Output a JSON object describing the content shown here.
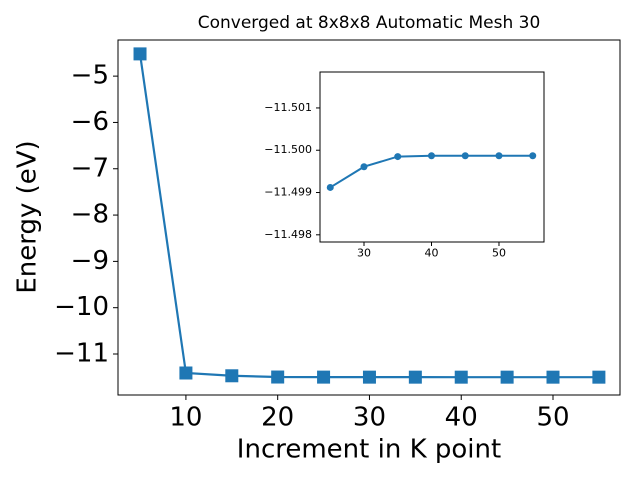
{
  "chart_data": [
    {
      "type": "line",
      "title": "Converged at 8x8x8 Automatic Mesh 30",
      "xlabel": "Increment in K point",
      "ylabel": "Energy (eV)",
      "x": [
        5,
        10,
        15,
        20,
        25,
        30,
        35,
        40,
        45,
        50,
        55
      ],
      "series": [
        {
          "color": "#1f77b4",
          "marker": "square",
          "values": [
            -4.52,
            -11.41,
            -11.47,
            -11.497,
            -11.499,
            -11.4996,
            -11.4998,
            -11.4999,
            -11.4999,
            -11.4999,
            -11.4999
          ]
        }
      ],
      "xlim": [
        2.6,
        57.3
      ],
      "ylim": [
        -11.885,
        -4.22
      ],
      "xticks": [
        10,
        20,
        30,
        40,
        50
      ],
      "yticks": [
        {
          "value": -11,
          "label": "−11"
        },
        {
          "value": -10,
          "label": "−10"
        },
        {
          "value": -9,
          "label": "−9"
        },
        {
          "value": -8,
          "label": "−8"
        },
        {
          "value": -7,
          "label": "−7"
        },
        {
          "value": -6,
          "label": "−6"
        },
        {
          "value": -5,
          "label": "−5"
        }
      ],
      "y_inverted": false
    },
    {
      "type": "line",
      "x": [
        25,
        30,
        35,
        40,
        45,
        50,
        55
      ],
      "series": [
        {
          "color": "#1f77b4",
          "marker": "circle",
          "values": [
            -11.49912,
            -11.49961,
            -11.49985,
            -11.49987,
            -11.49987,
            -11.49987,
            -11.49987
          ]
        }
      ],
      "xlim": [
        23.48,
        56.67
      ],
      "ylim": [
        -11.50185,
        -11.49783
      ],
      "xticks": [
        30,
        40,
        50
      ],
      "yticks": [
        {
          "value": -11.501,
          "label": "−11.501"
        },
        {
          "value": -11.5,
          "label": "−11.500"
        },
        {
          "value": -11.499,
          "label": "−11.499"
        },
        {
          "value": -11.498,
          "label": "−11.498"
        }
      ],
      "y_inverted": true
    }
  ]
}
